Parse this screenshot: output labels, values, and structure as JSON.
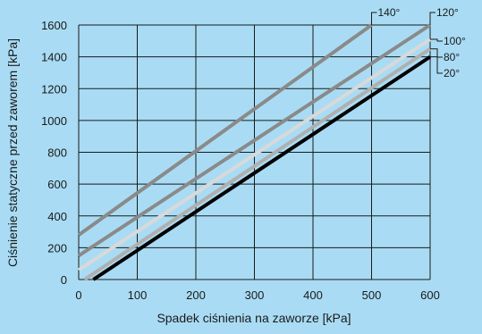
{
  "chart_data": {
    "type": "line",
    "xlabel": "Spadek ciśnienia na zaworze [kPa]",
    "ylabel": "Ciśnienie statyczne przed zaworem [kPa]",
    "xlim": [
      0,
      600
    ],
    "ylim": [
      0,
      1600
    ],
    "x_ticks": [
      0,
      100,
      200,
      300,
      400,
      500,
      600
    ],
    "y_ticks": [
      0,
      200,
      400,
      600,
      800,
      1000,
      1200,
      1400,
      1600
    ],
    "grid": true,
    "colors": {
      "background": "#a9dcf4",
      "plot_area": "#a9dcf4",
      "grid": "#1a1a1a"
    },
    "series": [
      {
        "name": "140°",
        "color": "#8a8a8a",
        "points": [
          [
            0,
            280
          ],
          [
            500,
            1600
          ]
        ]
      },
      {
        "name": "120°",
        "color": "#8a8a8a",
        "points": [
          [
            0,
            150
          ],
          [
            600,
            1600
          ]
        ]
      },
      {
        "name": "100°",
        "color": "#d9d9d9",
        "points": [
          [
            0,
            60
          ],
          [
            600,
            1510
          ]
        ]
      },
      {
        "name": "80°",
        "color": "#b0b0b0",
        "points": [
          [
            10,
            0
          ],
          [
            600,
            1450
          ]
        ]
      },
      {
        "name": "20°",
        "color": "#000000",
        "points": [
          [
            25,
            0
          ],
          [
            600,
            1400
          ]
        ]
      }
    ]
  }
}
